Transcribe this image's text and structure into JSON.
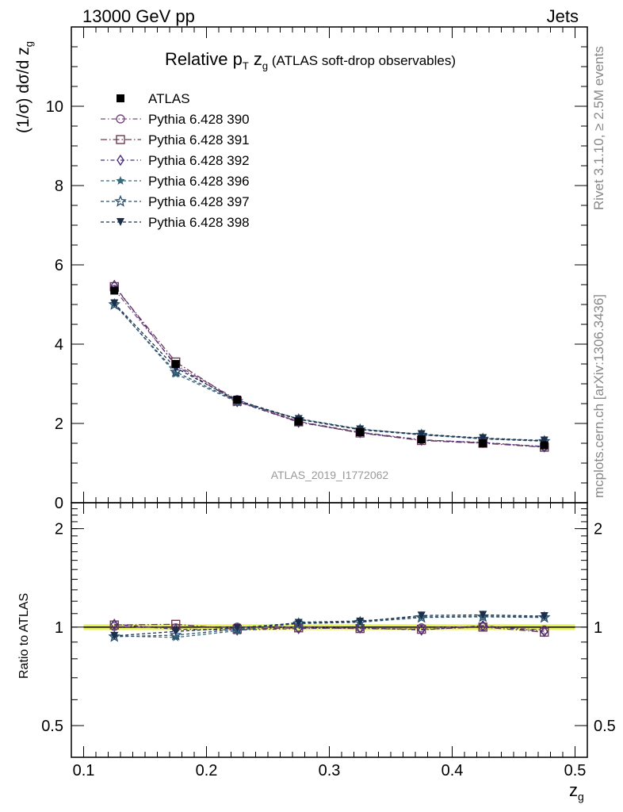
{
  "header": {
    "left": "13000 GeV pp",
    "right": "Jets"
  },
  "side_labels": {
    "top": "Rivet 3.1.10, ≥ 2.5M events",
    "bottom": "mcplots.cern.ch [arXiv:1306.3436]"
  },
  "watermark": "ATLAS_2019_I1772062",
  "title": {
    "main": "Relative p",
    "sub_T": "T",
    "mid": " z",
    "sub_g": "g",
    "paren": " (ATLAS soft-drop observables)"
  },
  "chart_data": {
    "type": "line",
    "xlabel": "z_g",
    "ylabel_main": "(1/σ) dσ/d z_g",
    "ylabel_ratio": "Ratio to ATLAS",
    "xlim": [
      0.09,
      0.51
    ],
    "ylim_main": [
      0,
      12
    ],
    "ylim_ratio": [
      0.4,
      2.4
    ],
    "ratio_log_scale": true,
    "x_ticks": [
      "0.1",
      "0.2",
      "0.3",
      "0.4",
      "0.5"
    ],
    "main_ticks": [
      "0",
      "2",
      "4",
      "6",
      "8",
      "10"
    ],
    "ratio_ticks": [
      "0.5",
      "1",
      "2"
    ],
    "x": [
      0.125,
      0.175,
      0.225,
      0.275,
      0.325,
      0.375,
      0.425,
      0.475
    ],
    "series": [
      {
        "name": "ATLAS",
        "color": "#000000",
        "marker": "square-filled",
        "values": [
          5.35,
          3.5,
          2.6,
          2.05,
          1.78,
          1.6,
          1.5,
          1.45
        ],
        "ratio": [
          1,
          1,
          1,
          1,
          1,
          1,
          1,
          1
        ]
      },
      {
        "name": "Pythia 6.428 390",
        "color": "#7a4a82",
        "marker": "circle-open",
        "dash": "6,3,1.5,3",
        "values": [
          5.38,
          3.48,
          2.6,
          2.05,
          1.78,
          1.59,
          1.51,
          1.42
        ],
        "ratio": [
          1.005,
          0.995,
          1.0,
          1.0,
          0.995,
          0.995,
          1.005,
          0.98
        ]
      },
      {
        "name": "Pythia 6.428 391",
        "color": "#6e3a50",
        "marker": "square-open",
        "dash": "8,3,1.5,3",
        "values": [
          5.45,
          3.55,
          2.56,
          2.04,
          1.76,
          1.57,
          1.5,
          1.4
        ],
        "ratio": [
          1.015,
          1.02,
          0.985,
          0.995,
          0.99,
          0.985,
          1.0,
          0.965
        ]
      },
      {
        "name": "Pythia 6.428 392",
        "color": "#4a2f7a",
        "marker": "diamond-open",
        "dash": "5,3,1.5,3",
        "values": [
          5.48,
          3.45,
          2.55,
          2.03,
          1.77,
          1.58,
          1.52,
          1.41
        ],
        "ratio": [
          1.02,
          0.985,
          0.98,
          0.99,
          0.995,
          0.98,
          1.01,
          0.97
        ]
      },
      {
        "name": "Pythia 6.428 396",
        "color": "#3a6a7a",
        "marker": "star-filled",
        "dash": "4,3",
        "values": [
          5.02,
          3.25,
          2.54,
          2.12,
          1.86,
          1.72,
          1.62,
          1.56
        ],
        "ratio": [
          0.94,
          0.93,
          0.975,
          1.035,
          1.045,
          1.075,
          1.08,
          1.075
        ]
      },
      {
        "name": "Pythia 6.428 397",
        "color": "#2a4f6e",
        "marker": "star-open",
        "dash": "4,3",
        "values": [
          5.0,
          3.3,
          2.56,
          2.1,
          1.84,
          1.71,
          1.61,
          1.55
        ],
        "ratio": [
          0.935,
          0.945,
          0.985,
          1.025,
          1.035,
          1.07,
          1.075,
          1.07
        ]
      },
      {
        "name": "Pythia 6.428 398",
        "color": "#1c2e4a",
        "marker": "triangle-down-filled",
        "dash": "4,3",
        "values": [
          5.03,
          3.4,
          2.58,
          2.11,
          1.85,
          1.73,
          1.63,
          1.57
        ],
        "ratio": [
          0.94,
          0.97,
          0.995,
          1.03,
          1.04,
          1.085,
          1.09,
          1.08
        ]
      }
    ],
    "legend_placement": "top-left",
    "ratio_band_color": "#e6f35a"
  }
}
